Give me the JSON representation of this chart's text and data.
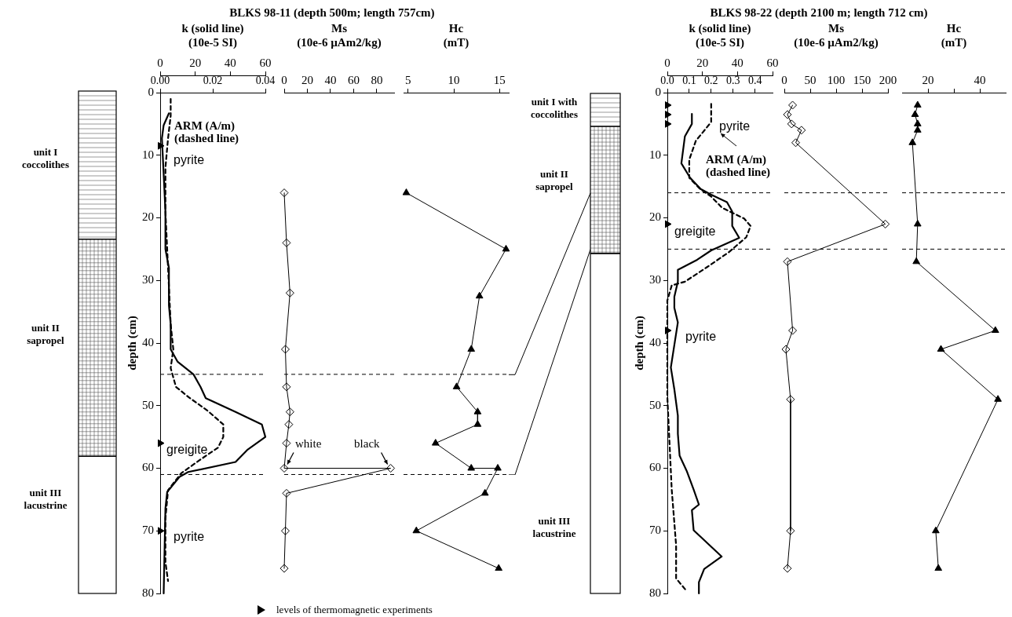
{
  "chart_data": [
    {
      "type": "line",
      "title": "BLKS 98-11 (depth 500m; length 757cm)",
      "xlabel": "k (solid line) (10e-5 SI)",
      "ylabel": "depth (cm)",
      "xlim": [
        0,
        60
      ],
      "xticks": [
        0,
        20,
        40,
        60
      ],
      "x2lim": [
        0,
        0.04
      ],
      "x2ticks": [
        {
          "value": 0,
          "label": "0.00"
        },
        0.02,
        0.04
      ],
      "ylim": [
        80,
        0
      ],
      "yticks": [
        0,
        10,
        20,
        30,
        40,
        50,
        60,
        70,
        80
      ],
      "grid": false,
      "legend": "bottom",
      "ref_lines": [
        {
          "axis": "y",
          "value": 45,
          "line_style": "dashed"
        },
        {
          "axis": "y",
          "value": 61,
          "line_style": "dashed"
        }
      ],
      "annotations": [
        "unit I coccolithes",
        "unit II sapropel",
        "unit III lacustrine",
        "ARM (A/m) (dashed line)",
        "pyrite",
        "greigite",
        "pyrite"
      ],
      "series": [
        {
          "type": "line",
          "color": "#000000",
          "line_style": "solid",
          "marker": "none",
          "x": [
            5,
            2,
            1,
            2,
            3,
            3,
            5,
            5,
            6,
            6,
            10,
            19,
            23,
            26,
            43,
            58,
            60,
            50,
            43,
            16,
            11,
            4,
            3,
            2
          ],
          "values": [
            3.3,
            5.2,
            7.3,
            13,
            19,
            25,
            28,
            34,
            37,
            41,
            43,
            45,
            47,
            48.8,
            51,
            53,
            55,
            57,
            59,
            60.6,
            61.4,
            63.8,
            66.4,
            80
          ]
        },
        {
          "type": "line",
          "axis": "x2",
          "color": "#000000",
          "line_style": "dashed",
          "marker": "none",
          "x": [
            0.004,
            0.004,
            0.003,
            0.002,
            0.002,
            0.003,
            0.004,
            0.005,
            0.004,
            0.006,
            0.011,
            0.018,
            0.024,
            0.024,
            0.022,
            0.015,
            0.008,
            0.003,
            0.002,
            0.002,
            0.003
          ],
          "values": [
            1,
            3.7,
            7.3,
            12,
            19,
            28,
            37,
            41,
            44,
            47,
            48.7,
            50.8,
            53,
            55,
            56.7,
            58.7,
            60.8,
            63.5,
            68,
            75,
            78
          ]
        },
        {
          "type": "scatter",
          "name": "levels of thermomagnetic experiments",
          "color": "#000000",
          "marker": "triangle",
          "x": [
            0,
            0,
            0
          ],
          "values": [
            8.5,
            56,
            70
          ]
        }
      ]
    },
    {
      "type": "line",
      "xlabel": "Ms (10e-6 µAm2/kg)",
      "xlim": [
        0,
        95
      ],
      "xticks": [
        0,
        20,
        40,
        60,
        80
      ],
      "ylim": [
        80,
        0
      ],
      "tick_labels": "x",
      "grid": false,
      "ref_lines": [
        {
          "axis": "y",
          "value": 45,
          "line_style": "dashed"
        },
        {
          "axis": "y",
          "value": 61,
          "line_style": "dashed"
        }
      ],
      "annotations": [
        {
          "text": "white",
          "x": 0,
          "y": 60
        },
        {
          "text": "black",
          "x": 92,
          "y": 60
        }
      ],
      "series": [
        {
          "type": "line",
          "color": "#000000",
          "line_style": "solid",
          "marker": "diamond",
          "x": [
            0,
            2,
            5,
            1,
            2,
            5,
            4,
            2,
            0,
            92,
            2,
            1,
            0
          ],
          "values": [
            16,
            24,
            32,
            41,
            47,
            51,
            53,
            56,
            60,
            60,
            64,
            70,
            76
          ]
        }
      ]
    },
    {
      "type": "line",
      "xlabel": "Hc (mT)",
      "xlim": [
        4.5,
        16
      ],
      "xticks": [
        5,
        10,
        15
      ],
      "ylim": [
        80,
        0
      ],
      "tick_labels": "x",
      "grid": false,
      "ref_lines": [
        {
          "axis": "y",
          "value": 45,
          "line_style": "dashed"
        },
        {
          "axis": "y",
          "value": 61,
          "line_style": "dashed"
        }
      ],
      "series": [
        {
          "type": "line",
          "color": "#000000",
          "line_style": "solid",
          "marker": "triangle",
          "x": [
            4.8,
            15.7,
            12.8,
            11.9,
            10.3,
            12.6,
            12.6,
            8,
            11.9,
            14.8,
            13.4,
            5.9,
            14.9
          ],
          "values": [
            16,
            25,
            32.5,
            41,
            47,
            51,
            53,
            56,
            60,
            60,
            64,
            70,
            76
          ]
        }
      ]
    },
    {
      "type": "line",
      "title": "BLKS 98-22 (depth 2100 m; length 712 cm)",
      "xlabel": "k (solid line) (10e-5 SI)",
      "ylabel": "depth (cm)",
      "xlim": [
        0,
        60
      ],
      "xticks": [
        0,
        20,
        40,
        60
      ],
      "x2lim": [
        0,
        0.48
      ],
      "x2ticks": [
        {
          "value": 0,
          "label": "0.0"
        },
        0.1,
        0.2,
        0.3,
        0.4
      ],
      "ylim": [
        80,
        0
      ],
      "yticks": [
        0,
        10,
        20,
        30,
        40,
        50,
        60,
        70,
        80
      ],
      "grid": false,
      "ref_lines": [
        {
          "axis": "y",
          "value": 16,
          "line_style": "dashed"
        },
        {
          "axis": "y",
          "value": 25,
          "line_style": "dashed"
        }
      ],
      "annotations": [
        "unit I with coccolithes",
        "unit II sapropel",
        "unit III lacustrine",
        "pyrite",
        "ARM (A/m) (dashed line)",
        "greigite",
        "pyrite"
      ],
      "series": [
        {
          "type": "line",
          "color": "#000000",
          "line_style": "solid",
          "marker": "none",
          "x": [
            14,
            14,
            10,
            8,
            13,
            19,
            25,
            34,
            37,
            37,
            41,
            25,
            17,
            6,
            6,
            4,
            4,
            6,
            4,
            2,
            4,
            6,
            6,
            7,
            11,
            15,
            18,
            14,
            15,
            31,
            21,
            18,
            18
          ],
          "values": [
            3.4,
            5,
            7,
            11.3,
            13.6,
            15.4,
            16.3,
            17.5,
            19,
            21.3,
            23.2,
            25.2,
            26.7,
            28.3,
            30.2,
            32.6,
            34.4,
            36.7,
            40.3,
            43.9,
            47.4,
            51.6,
            54.5,
            58,
            60.4,
            63.4,
            65.8,
            66.7,
            69.9,
            74.1,
            76.1,
            78.2,
            80
          ]
        },
        {
          "type": "line",
          "axis": "x2",
          "color": "#000000",
          "line_style": "dashed",
          "marker": "none",
          "x": [
            0.2,
            0.2,
            0.13,
            0.1,
            0.1,
            0.15,
            0.2,
            0.25,
            0.35,
            0.38,
            0.36,
            0.28,
            0.18,
            0.08,
            0.02,
            0,
            0,
            0.02,
            0.04,
            0.04,
            0.09
          ],
          "values": [
            1.8,
            4.7,
            7.7,
            10.7,
            13.6,
            15.4,
            16.6,
            18.4,
            20.1,
            21.3,
            23.1,
            25.5,
            27.9,
            30.2,
            30.8,
            33.2,
            48.6,
            63.4,
            72.3,
            77.6,
            79.7
          ]
        },
        {
          "type": "scatter",
          "color": "#000000",
          "marker": "triangle",
          "x": [
            0,
            0,
            0,
            0,
            0
          ],
          "values": [
            2,
            3.5,
            5,
            21,
            38
          ]
        }
      ]
    },
    {
      "type": "line",
      "xlabel": "Ms (10e-6 µAm2/kg)",
      "xlim": [
        0,
        200
      ],
      "xticks": [
        0,
        50,
        100,
        150,
        200
      ],
      "ylim": [
        80,
        0
      ],
      "tick_labels": "x",
      "grid": false,
      "ref_lines": [
        {
          "axis": "y",
          "value": 16,
          "line_style": "dashed"
        },
        {
          "axis": "y",
          "value": 25,
          "line_style": "dashed"
        }
      ],
      "series": [
        {
          "type": "line",
          "color": "#000000",
          "line_style": "solid",
          "marker": "diamond",
          "x": [
            16,
            6,
            14,
            33,
            22,
            195,
            6,
            16,
            3,
            12,
            12,
            6
          ],
          "values": [
            2,
            3.5,
            5,
            6,
            8,
            21,
            27,
            38,
            41,
            49,
            70,
            76
          ]
        }
      ]
    },
    {
      "type": "line",
      "xlabel": "Hc (mT)",
      "xlim": [
        10,
        50
      ],
      "xticks": [
        20,
        {
          "value": 30,
          "label": null
        },
        40
      ],
      "ylim": [
        80,
        0
      ],
      "tick_labels": "x",
      "grid": false,
      "ref_lines": [
        {
          "axis": "y",
          "value": 16,
          "line_style": "dashed"
        },
        {
          "axis": "y",
          "value": 25,
          "line_style": "dashed"
        }
      ],
      "series": [
        {
          "type": "line",
          "color": "#000000",
          "line_style": "solid",
          "marker": "triangle",
          "x": [
            16,
            15,
            16,
            16,
            14,
            16,
            15.5,
            46,
            25,
            47,
            23,
            24
          ],
          "values": [
            2,
            3.5,
            5,
            6,
            8,
            21,
            27,
            38,
            41,
            49,
            70,
            76
          ]
        }
      ]
    }
  ]
}
